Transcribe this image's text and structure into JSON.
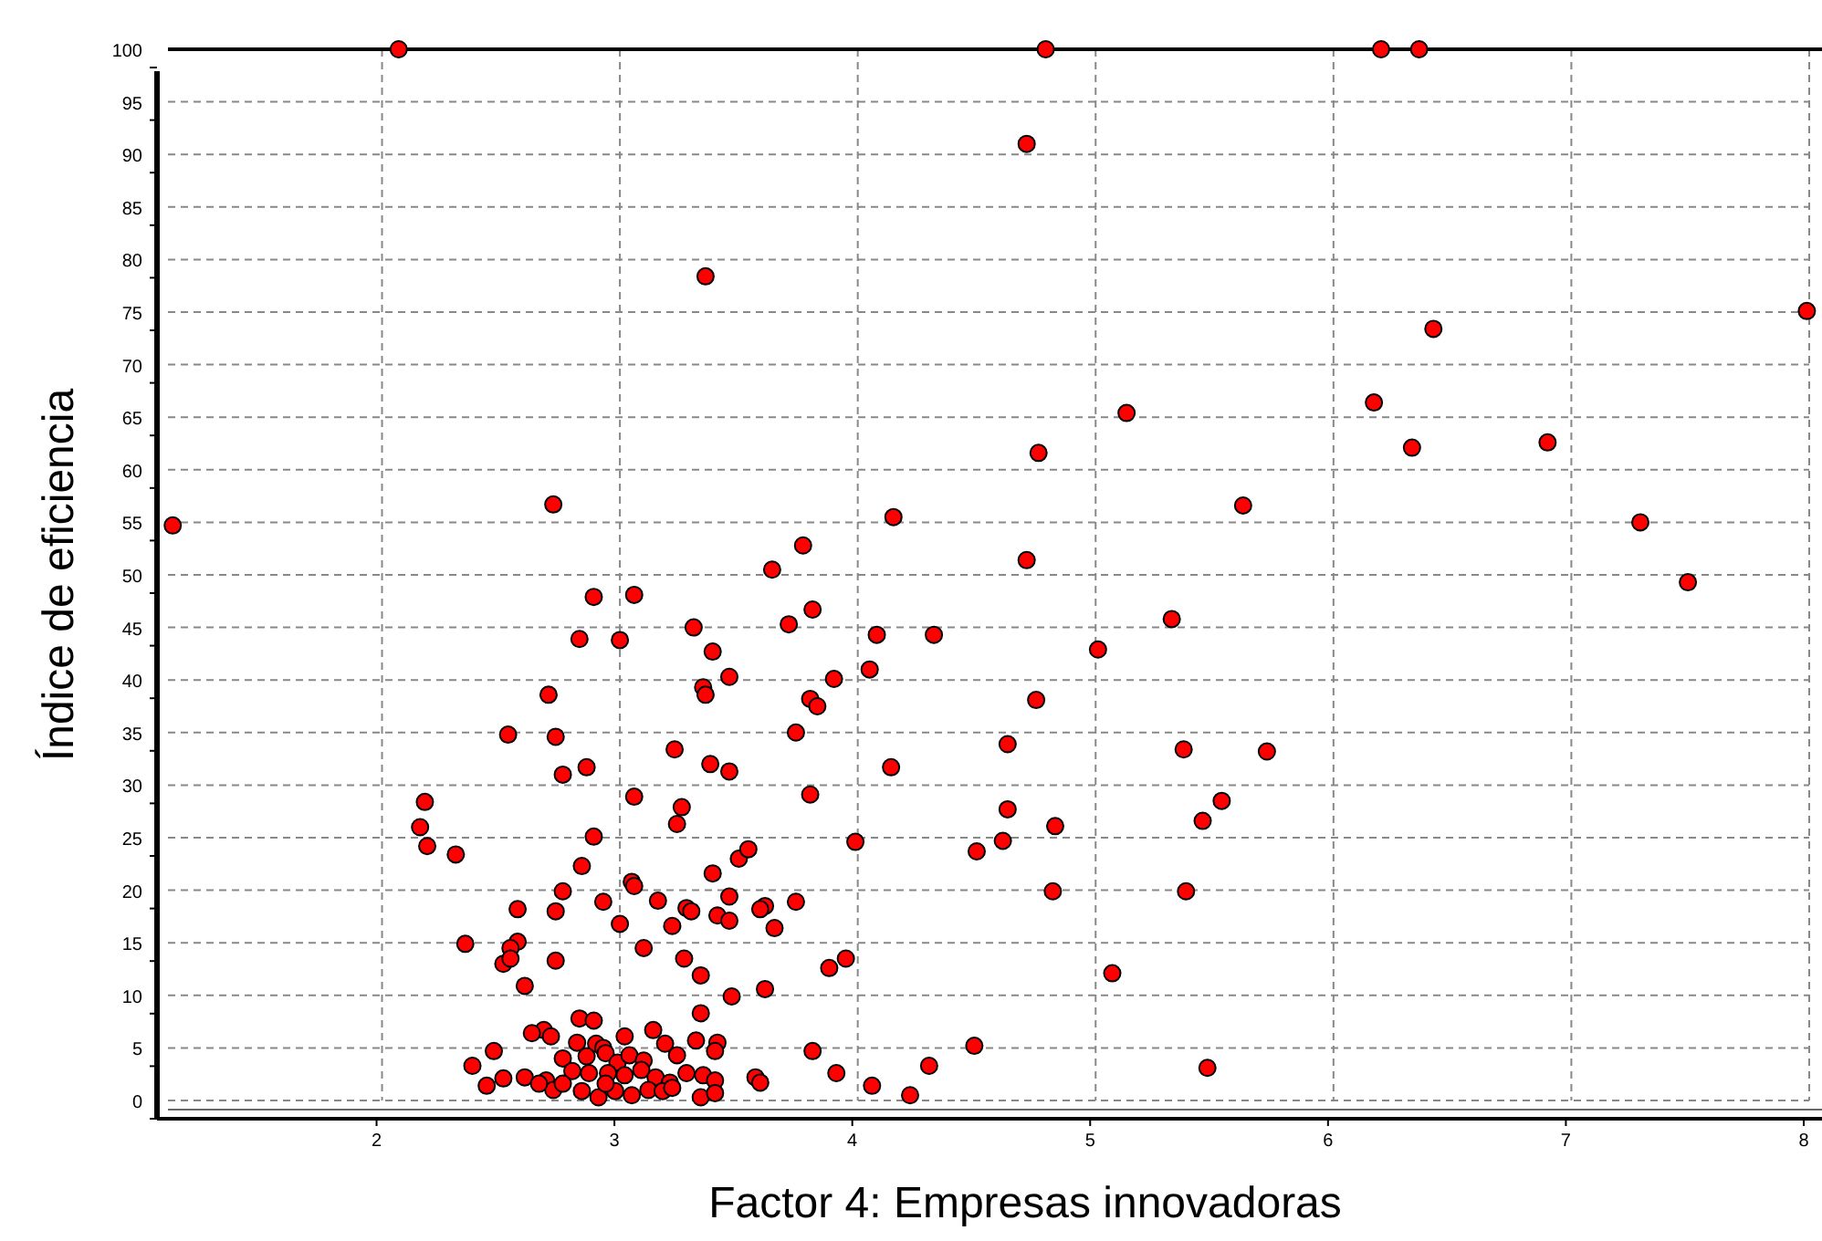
{
  "chart_data": {
    "type": "scatter",
    "xlabel": "Factor 4: Empresas innovadoras",
    "ylabel": "Índice de eficiencia",
    "xlim": [
      1.1,
      8
    ],
    "ylim": [
      0,
      100
    ],
    "xticks": [
      2,
      3,
      4,
      5,
      6,
      7,
      8
    ],
    "yticks": [
      0,
      5,
      10,
      15,
      20,
      25,
      30,
      35,
      40,
      45,
      50,
      55,
      60,
      65,
      70,
      75,
      80,
      85,
      90,
      95,
      100
    ],
    "grid": true,
    "marker": "circle",
    "series": [
      {
        "color": "#ff0000",
        "x": [
          1.12,
          2.07,
          6.2,
          6.36,
          4.79,
          4.71,
          6.42,
          7.99,
          3.36,
          6.17,
          5.13,
          4.76,
          6.33,
          6.9,
          7.29,
          7.49,
          5.62,
          4.15,
          3.77,
          3.64,
          4.71,
          2.72,
          2.89,
          3.06,
          2.83,
          3.0,
          3.31,
          3.81,
          3.71,
          4.08,
          4.32,
          5.32,
          3.39,
          3.46,
          3.35,
          3.36,
          3.8,
          3.83,
          3.9,
          4.05,
          5.01,
          2.7,
          4.75,
          3.74,
          2.53,
          2.73,
          4.63,
          2.86,
          2.76,
          3.23,
          3.06,
          3.38,
          3.46,
          4.14,
          3.8,
          5.37,
          5.72,
          2.18,
          2.16,
          2.19,
          2.31,
          3.26,
          3.24,
          2.89,
          4.63,
          4.83,
          4.61,
          5.53,
          5.45,
          3.99,
          4.5,
          3.5,
          3.54,
          2.84,
          2.76,
          2.93,
          3.05,
          3.06,
          3.16,
          3.28,
          3.3,
          3.61,
          3.59,
          3.46,
          3.39,
          3.74,
          4.82,
          5.38,
          2.57,
          2.73,
          2.57,
          2.54,
          2.35,
          3.0,
          3.22,
          3.65,
          3.41,
          3.1,
          3.46,
          2.6,
          2.51,
          2.54,
          2.73,
          3.27,
          3.34,
          3.47,
          3.61,
          3.88,
          3.95,
          5.07,
          3.34,
          2.83,
          2.89,
          3.14,
          2.68,
          2.63,
          2.71,
          2.82,
          2.9,
          2.93,
          3.02,
          3.19,
          3.32,
          3.41,
          2.76,
          2.86,
          2.94,
          2.99,
          3.04,
          3.1,
          3.24,
          3.4,
          3.81,
          4.49,
          4.3,
          3.91,
          5.47,
          2.38,
          2.47,
          2.44,
          2.51,
          2.6,
          2.69,
          2.8,
          2.87,
          2.95,
          3.02,
          3.09,
          3.15,
          3.21,
          3.28,
          3.35,
          3.4,
          3.57,
          3.59,
          4.06,
          4.22,
          2.84,
          2.91,
          2.98,
          3.05,
          3.12,
          3.18,
          3.22,
          3.34,
          3.4,
          2.72,
          2.66,
          2.76,
          2.94
        ],
        "values": [
          54.7,
          100,
          100,
          100,
          100,
          91,
          73.4,
          75.1,
          78.4,
          66.4,
          65.4,
          61.6,
          62.1,
          62.6,
          55.0,
          49.3,
          56.6,
          55.5,
          52.8,
          50.5,
          51.4,
          56.7,
          47.9,
          48.1,
          43.9,
          43.8,
          45.0,
          46.7,
          45.3,
          44.3,
          44.3,
          45.8,
          42.7,
          40.3,
          39.3,
          38.6,
          38.2,
          37.5,
          40.1,
          41.0,
          42.9,
          38.6,
          38.1,
          35.0,
          34.8,
          34.6,
          33.9,
          31.7,
          31.0,
          33.4,
          28.9,
          32.0,
          31.3,
          31.7,
          29.1,
          33.4,
          33.2,
          28.4,
          26.0,
          24.2,
          23.4,
          27.9,
          26.3,
          25.1,
          27.7,
          26.1,
          24.7,
          28.5,
          26.6,
          24.6,
          23.7,
          23.0,
          23.9,
          22.3,
          19.9,
          18.9,
          20.8,
          20.4,
          19.0,
          18.3,
          18.0,
          18.5,
          18.2,
          19.4,
          21.6,
          18.9,
          19.9,
          19.9,
          18.2,
          18.0,
          15.1,
          14.5,
          14.9,
          16.8,
          16.6,
          16.4,
          17.6,
          14.5,
          17.1,
          10.9,
          13.0,
          13.5,
          13.3,
          13.5,
          11.9,
          9.9,
          10.6,
          12.6,
          13.5,
          12.1,
          8.3,
          7.8,
          7.6,
          6.7,
          6.7,
          6.4,
          6.1,
          5.5,
          5.4,
          5.0,
          6.1,
          5.4,
          5.7,
          5.5,
          4.0,
          4.2,
          4.5,
          3.6,
          4.3,
          3.8,
          4.3,
          4.7,
          4.7,
          5.2,
          3.3,
          2.6,
          3.1,
          3.3,
          4.7,
          1.4,
          2.1,
          2.2,
          1.9,
          2.8,
          2.6,
          2.6,
          2.4,
          2.9,
          2.2,
          1.7,
          2.6,
          2.4,
          1.9,
          2.2,
          1.7,
          1.4,
          0.5,
          0.9,
          0.3,
          0.9,
          0.5,
          1.0,
          0.9,
          1.2,
          0.3,
          0.7,
          1.0,
          1.6,
          1.6,
          1.6
        ]
      }
    ]
  }
}
